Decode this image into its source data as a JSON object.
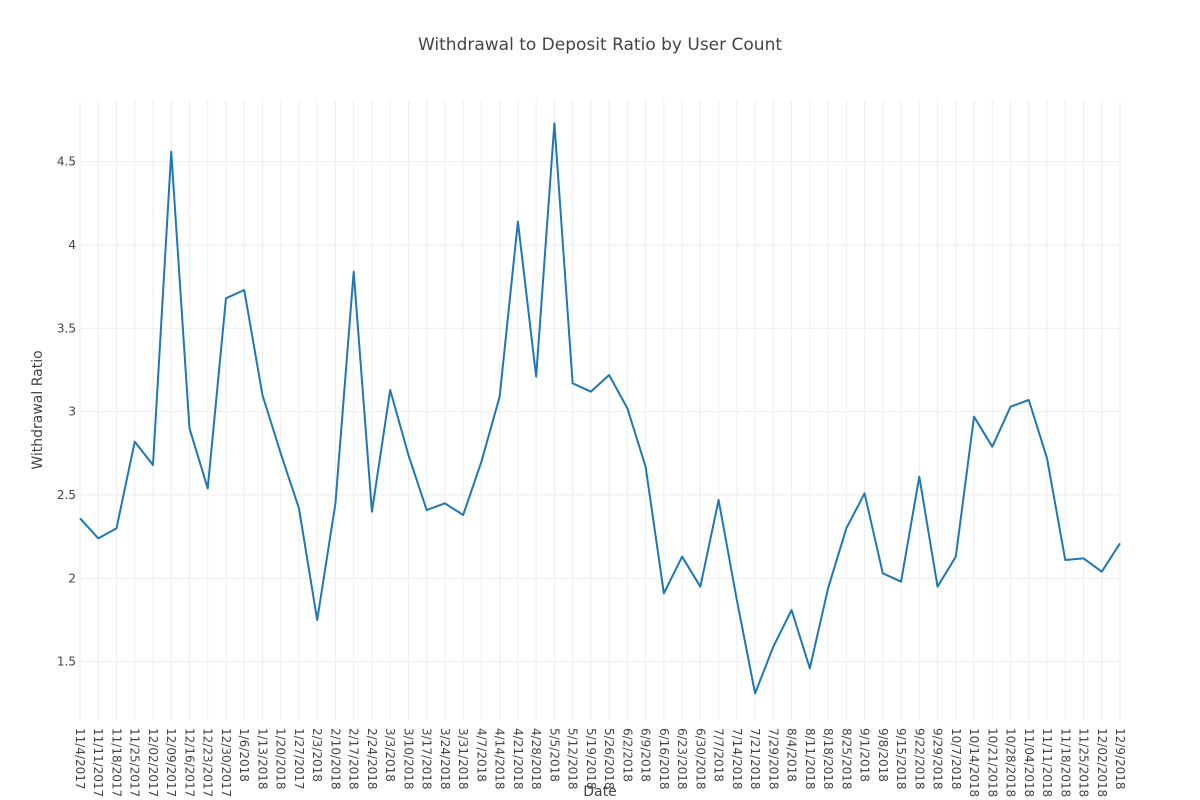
{
  "chart_data": {
    "type": "line",
    "title": "Withdrawal to Deposit Ratio by User Count",
    "xlabel": "Date",
    "ylabel": "Withdrawal Ratio",
    "ylim": [
      1.15,
      4.87
    ],
    "yticks": [
      1.5,
      2,
      2.5,
      3,
      3.5,
      4,
      4.5
    ],
    "ytick_labels": [
      "1.5",
      "2",
      "2.5",
      "3",
      "3.5",
      "4",
      "4.5"
    ],
    "grid": true,
    "legend": "none",
    "line_color": "#1f77b4",
    "x": [
      "11/4/2017",
      "11/11/2017",
      "11/18/2017",
      "11/25/2017",
      "12/02/2017",
      "12/09/2017",
      "12/16/2017",
      "12/23/2017",
      "12/30/2017",
      "1/6/2018",
      "1/13/2018",
      "1/20/2018",
      "1/27/2017",
      "2/3/2018",
      "2/10/2018",
      "2/17/2018",
      "2/24/2018",
      "3/3/2018",
      "3/10/2018",
      "3/17/2018",
      "3/24/2018",
      "3/31/2018",
      "4/7/2018",
      "4/14/2018",
      "4/21/2018",
      "4/28/2018",
      "5/5/2018",
      "5/12/2018",
      "5/19/2018",
      "5/26/2018",
      "6/2/2018",
      "6/9/2018",
      "6/16/2018",
      "6/23/2018",
      "6/30/2018",
      "7/7/2018",
      "7/14/2018",
      "7/21/2018",
      "7/29/2018",
      "8/4/2018",
      "8/11/2018",
      "8/18/2018",
      "8/25/2018",
      "9/1/2018",
      "9/8/2018",
      "9/15/2018",
      "9/22/2018",
      "9/29/2018",
      "10/7/2018",
      "10/14/2018",
      "10/21/2018",
      "10/28/2018",
      "11/04/2018",
      "11/11/2018",
      "11/18/2018",
      "11/25/2018",
      "12/02/2018",
      "12/9/2018"
    ],
    "series": [
      {
        "values": [
          2.36,
          2.24,
          2.3,
          2.82,
          2.68,
          4.56,
          2.9,
          2.54,
          3.68,
          3.73,
          3.1,
          2.75,
          2.42,
          1.75,
          2.45,
          3.84,
          2.4,
          3.13,
          2.74,
          2.41,
          2.45,
          2.38,
          2.7,
          3.09,
          4.14,
          3.21,
          4.73,
          3.17,
          3.12,
          3.22,
          3.02,
          2.67,
          1.91,
          2.13,
          1.95,
          2.47,
          1.87,
          1.31,
          1.59,
          1.81,
          1.46,
          1.94,
          2.3,
          2.51,
          2.03,
          1.98,
          2.61,
          1.95,
          2.13,
          2.97,
          2.79,
          3.03,
          3.07,
          2.72,
          2.11,
          2.12,
          2.04,
          2.21
        ]
      }
    ]
  }
}
